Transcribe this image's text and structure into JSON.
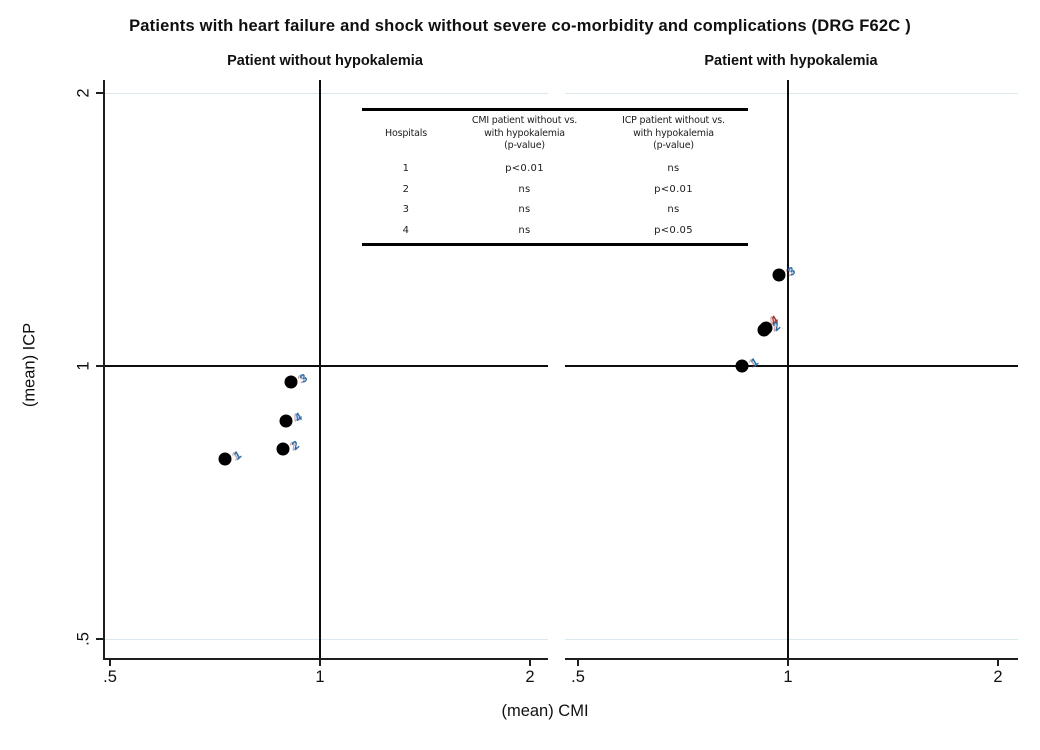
{
  "title": "Patients with heart failure and shock without severe co-morbidity and complications (DRG F62C )",
  "axes": {
    "x_label": "(mean) CMI",
    "y_label": "(mean) ICP"
  },
  "table": {
    "headers": [
      {
        "lines": [
          "Hospitals"
        ]
      },
      {
        "lines": [
          "CMI patient without vs.",
          "with hypokalemia",
          "(p-value)"
        ]
      },
      {
        "lines": [
          "ICP patient without vs.",
          "with hypokalemia",
          "(p-value)"
        ]
      }
    ],
    "rows": [
      [
        "1",
        "p<0.01",
        "ns"
      ],
      [
        "2",
        "ns",
        "p<0.01"
      ],
      [
        "3",
        "ns",
        "ns"
      ],
      [
        "4",
        "ns",
        "p<0.05"
      ]
    ]
  },
  "chart_data": {
    "type": "scatter",
    "title": "Patients with heart failure and shock without severe co-morbidity and complications (DRG F62C )",
    "xlabel": "(mean) CMI",
    "ylabel": "(mean) ICP",
    "x_scale": "log",
    "y_scale": "log",
    "xlim": [
      0.45,
      2.1
    ],
    "ylim": [
      0.47,
      2.1
    ],
    "x_ticks": [
      0.5,
      1,
      2
    ],
    "y_ticks": [
      0.5,
      1,
      2
    ],
    "x_tick_labels": [
      ".5",
      "1",
      "2"
    ],
    "y_tick_labels": [
      ".5",
      "1",
      "2"
    ],
    "reference_lines": {
      "x": 1,
      "y": 1
    },
    "grid": "horizontal-light",
    "marker_color": "#000000",
    "label_colors": {
      "navy": "#2070b4",
      "maroon": "#99332e"
    },
    "panels": [
      {
        "title": "Patient without hypokalemia",
        "points": [
          {
            "hospital": "1",
            "cmi": 0.73,
            "icp": 0.79
          },
          {
            "hospital": "2",
            "cmi": 0.885,
            "icp": 0.81
          },
          {
            "hospital": "4",
            "cmi": 0.895,
            "icp": 0.87
          },
          {
            "hospital": "3",
            "cmi": 0.91,
            "icp": 0.96
          }
        ]
      },
      {
        "title": "Patient with hypokalemia",
        "points": [
          {
            "hospital": "1",
            "cmi": 0.86,
            "icp": 1.0
          },
          {
            "hospital": "4",
            "cmi": 0.93,
            "icp": 1.1,
            "label_color": "maroon",
            "label_dx": 9,
            "label_dy": -7
          },
          {
            "hospital": "2",
            "cmi": 0.925,
            "icp": 1.095
          },
          {
            "hospital": "3",
            "cmi": 0.97,
            "icp": 1.26
          }
        ]
      }
    ]
  }
}
